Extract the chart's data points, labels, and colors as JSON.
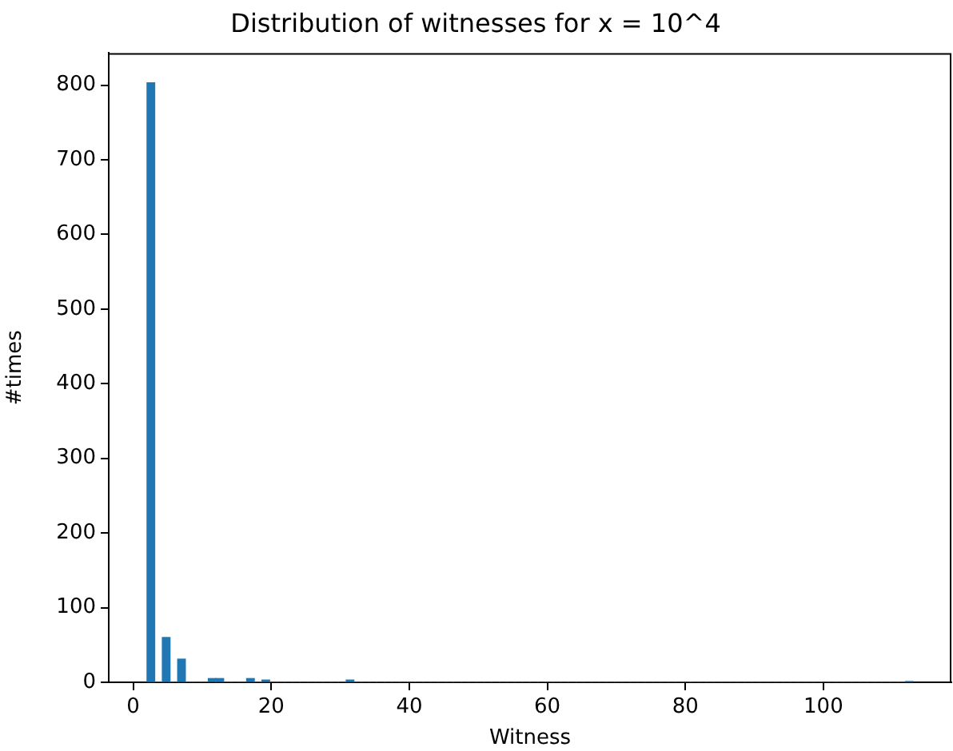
{
  "chart_data": {
    "type": "histogram",
    "title": "Distribution of witnesses for x = 10^4",
    "xlabel": "Witness",
    "ylabel": "#times",
    "color": "#1f77b4",
    "bins": [
      2,
      3.11,
      4.22,
      5.33,
      6.44,
      7.55,
      8.66,
      9.77,
      10.88,
      11.99,
      13.1,
      14.21,
      15.32,
      16.43,
      17.54,
      18.65,
      19.76,
      20.87,
      21.98,
      23.09,
      24.2,
      25.31,
      26.42,
      27.53,
      28.64,
      29.75,
      30.86,
      31.97,
      33.08,
      34.19,
      35.3,
      36.41,
      37.52,
      38.63,
      39.74,
      40.85,
      41.96,
      43.07,
      44.18,
      45.29,
      46.4,
      47.51,
      48.62,
      49.73,
      50.84,
      51.95,
      53.06,
      54.17,
      55.28,
      56.39,
      57.5,
      58.61,
      59.72,
      60.83,
      61.94,
      63.05,
      64.16,
      65.27,
      66.38,
      67.49,
      68.6,
      69.71,
      70.82,
      71.93,
      73.04,
      74.15,
      75.26,
      76.37,
      77.48,
      78.59,
      79.7,
      80.81,
      81.92,
      83.03,
      84.14,
      85.25,
      86.36,
      87.47,
      88.58,
      89.69,
      90.8,
      91.91,
      93.02,
      94.13,
      95.24,
      96.35,
      97.46,
      98.57,
      99.68,
      100.79,
      101.9,
      103.01,
      104.12,
      105.23,
      106.34,
      107.45,
      108.56,
      109.67,
      110.78,
      111.89,
      113
    ],
    "values": [
      803,
      0,
      60,
      0,
      31,
      0,
      0,
      0,
      5,
      5,
      0,
      0,
      0,
      5,
      0,
      3,
      0,
      0,
      0,
      0,
      0,
      0,
      0,
      0,
      0,
      0,
      3,
      0,
      0,
      0,
      0,
      0,
      0,
      0,
      0,
      0,
      0,
      0,
      0,
      0,
      0,
      0,
      0,
      0,
      0,
      0,
      0,
      0,
      0,
      0,
      0,
      0,
      0,
      0,
      0,
      0,
      0,
      0,
      0,
      0,
      0,
      0,
      0,
      0,
      0,
      0,
      0,
      0,
      0,
      0,
      0,
      0,
      0,
      0,
      0,
      0,
      0,
      0,
      0,
      0,
      0,
      0,
      0,
      0,
      0,
      0,
      0,
      0,
      0,
      0,
      0,
      0,
      0,
      0,
      0,
      0,
      0,
      0,
      0,
      1
    ],
    "xlim": [
      -3.55,
      118.55
    ],
    "xticks": [
      0,
      20,
      40,
      60,
      80,
      100
    ],
    "ylim": [
      0,
      843
    ],
    "yticks": [
      0,
      100,
      200,
      300,
      400,
      500,
      600,
      700,
      800
    ],
    "grid": false,
    "legend": false
  }
}
